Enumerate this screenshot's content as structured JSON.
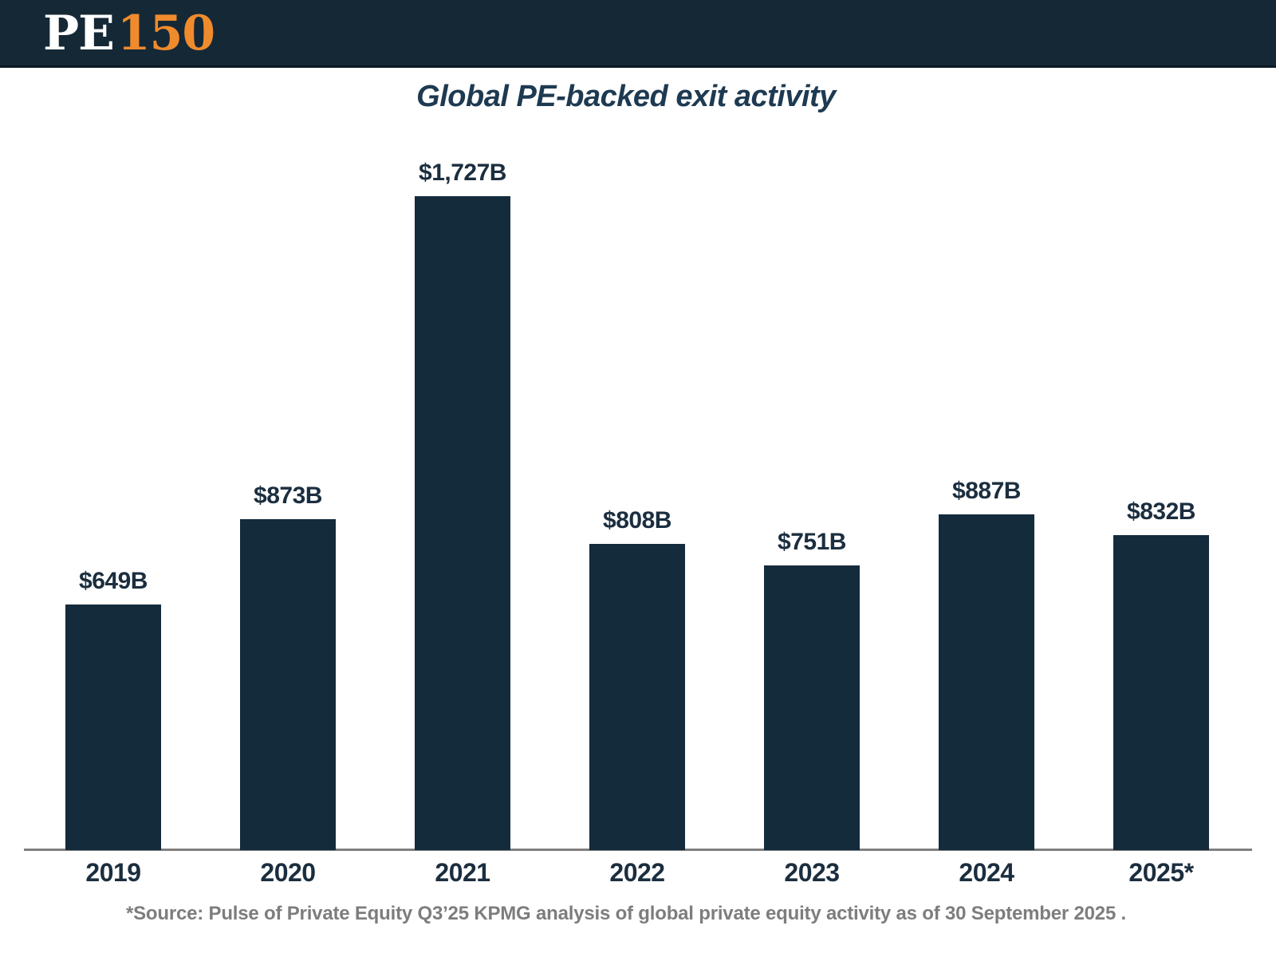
{
  "brand": {
    "logo_pe": "PE",
    "logo_150": "150"
  },
  "source_note": "*Source: Pulse of Private Equity Q3’25 KPMG analysis of global private equity activity as of 30 September 2025 .",
  "colors": {
    "header_bg": "#152836",
    "header_edge": "#0c1a26",
    "logo_orange": "#ef8b2d",
    "bar": "#142b3c",
    "label": "#1b2e3f",
    "title": "#1e3a52",
    "axis": "#808080",
    "source_gray": "#7d7d7d"
  },
  "chart_data": {
    "type": "bar",
    "title": "Global PE-backed exit activity",
    "categories": [
      "2019",
      "2020",
      "2021",
      "2022",
      "2023",
      "2024",
      "2025*"
    ],
    "values": [
      649,
      873,
      1727,
      808,
      751,
      887,
      832
    ],
    "value_labels": [
      "$649B",
      "$873B",
      "$1,727B",
      "$808B",
      "$751B",
      "$887B",
      "$832B"
    ],
    "xlabel": "",
    "ylabel": "",
    "ylim": [
      0,
      1850
    ],
    "grid": false,
    "legend": false,
    "bar_color": "#142b3c"
  }
}
